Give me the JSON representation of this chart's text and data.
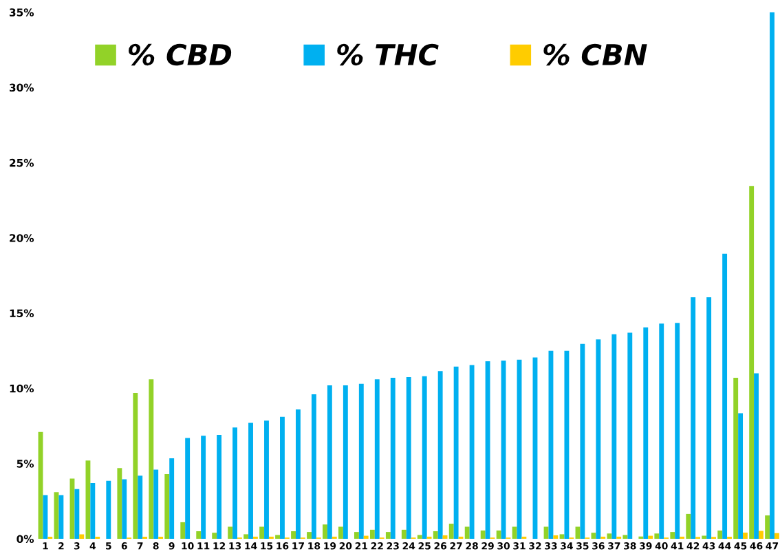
{
  "chart_data": {
    "type": "bar",
    "categories": [
      "1",
      "2",
      "3",
      "4",
      "5",
      "6",
      "7",
      "8",
      "9",
      "10",
      "11",
      "12",
      "13",
      "14",
      "15",
      "16",
      "17",
      "18",
      "19",
      "20",
      "21",
      "22",
      "23",
      "24",
      "25",
      "26",
      "27",
      "28",
      "29",
      "30",
      "31",
      "32",
      "33",
      "34",
      "35",
      "36",
      "37",
      "38",
      "39",
      "40",
      "41",
      "42",
      "43",
      "44",
      "45",
      "46",
      "47"
    ],
    "series": [
      {
        "name": "% CBD",
        "color": "#92d228",
        "values": [
          7.1,
          3.1,
          4.0,
          5.2,
          0,
          4.7,
          9.7,
          10.6,
          4.3,
          1.1,
          0.5,
          0.4,
          0.8,
          0.3,
          0.8,
          0.25,
          0.5,
          0.45,
          0.95,
          0.8,
          0.45,
          0.6,
          0.45,
          0.6,
          0.25,
          0.5,
          1.0,
          0.8,
          0.55,
          0.55,
          0.8,
          0,
          0.8,
          0.3,
          0.8,
          0.4,
          0.35,
          0.25,
          0.15,
          0.35,
          0.45,
          1.65,
          0.2,
          0.55,
          10.7,
          23.45,
          1.55
        ]
      },
      {
        "name": "% THC",
        "color": "#00b0f0",
        "values": [
          2.9,
          2.9,
          3.3,
          3.7,
          3.85,
          3.95,
          4.2,
          4.6,
          5.35,
          6.7,
          6.85,
          6.9,
          7.4,
          7.7,
          7.85,
          8.1,
          8.6,
          9.6,
          10.2,
          10.2,
          10.3,
          10.6,
          10.7,
          10.75,
          10.8,
          11.15,
          11.45,
          11.55,
          11.8,
          11.85,
          11.9,
          12.05,
          12.5,
          12.5,
          12.95,
          13.25,
          13.6,
          13.7,
          14.05,
          14.3,
          14.35,
          16.05,
          16.05,
          18.95,
          8.35,
          11.0,
          35
        ]
      },
      {
        "name": "% CBN",
        "color": "#ffcc00",
        "values": [
          0.14,
          0,
          0.29,
          0.14,
          0,
          0.08,
          0.14,
          0.14,
          0,
          0,
          0,
          0,
          0.08,
          0.14,
          0.14,
          0.08,
          0.08,
          0.08,
          0.14,
          0,
          0.2,
          0.08,
          0,
          0.08,
          0.14,
          0.23,
          0.14,
          0,
          0.08,
          0.08,
          0.14,
          0,
          0.23,
          0.08,
          0.08,
          0.14,
          0.14,
          0,
          0.2,
          0.08,
          0.14,
          0.12,
          0.12,
          0.14,
          0.41,
          0.52,
          0.38
        ]
      }
    ],
    "ylim": [
      0,
      35
    ],
    "yticks": [
      {
        "value": 0,
        "label": "0%"
      },
      {
        "value": 5,
        "label": "5%"
      },
      {
        "value": 10,
        "label": "10%"
      },
      {
        "value": 15,
        "label": "15%"
      },
      {
        "value": 20,
        "label": "20%"
      },
      {
        "value": 25,
        "label": "25%"
      },
      {
        "value": 30,
        "label": "30%"
      },
      {
        "value": 35,
        "label": "35%"
      }
    ],
    "grid": false,
    "legend": "top"
  }
}
